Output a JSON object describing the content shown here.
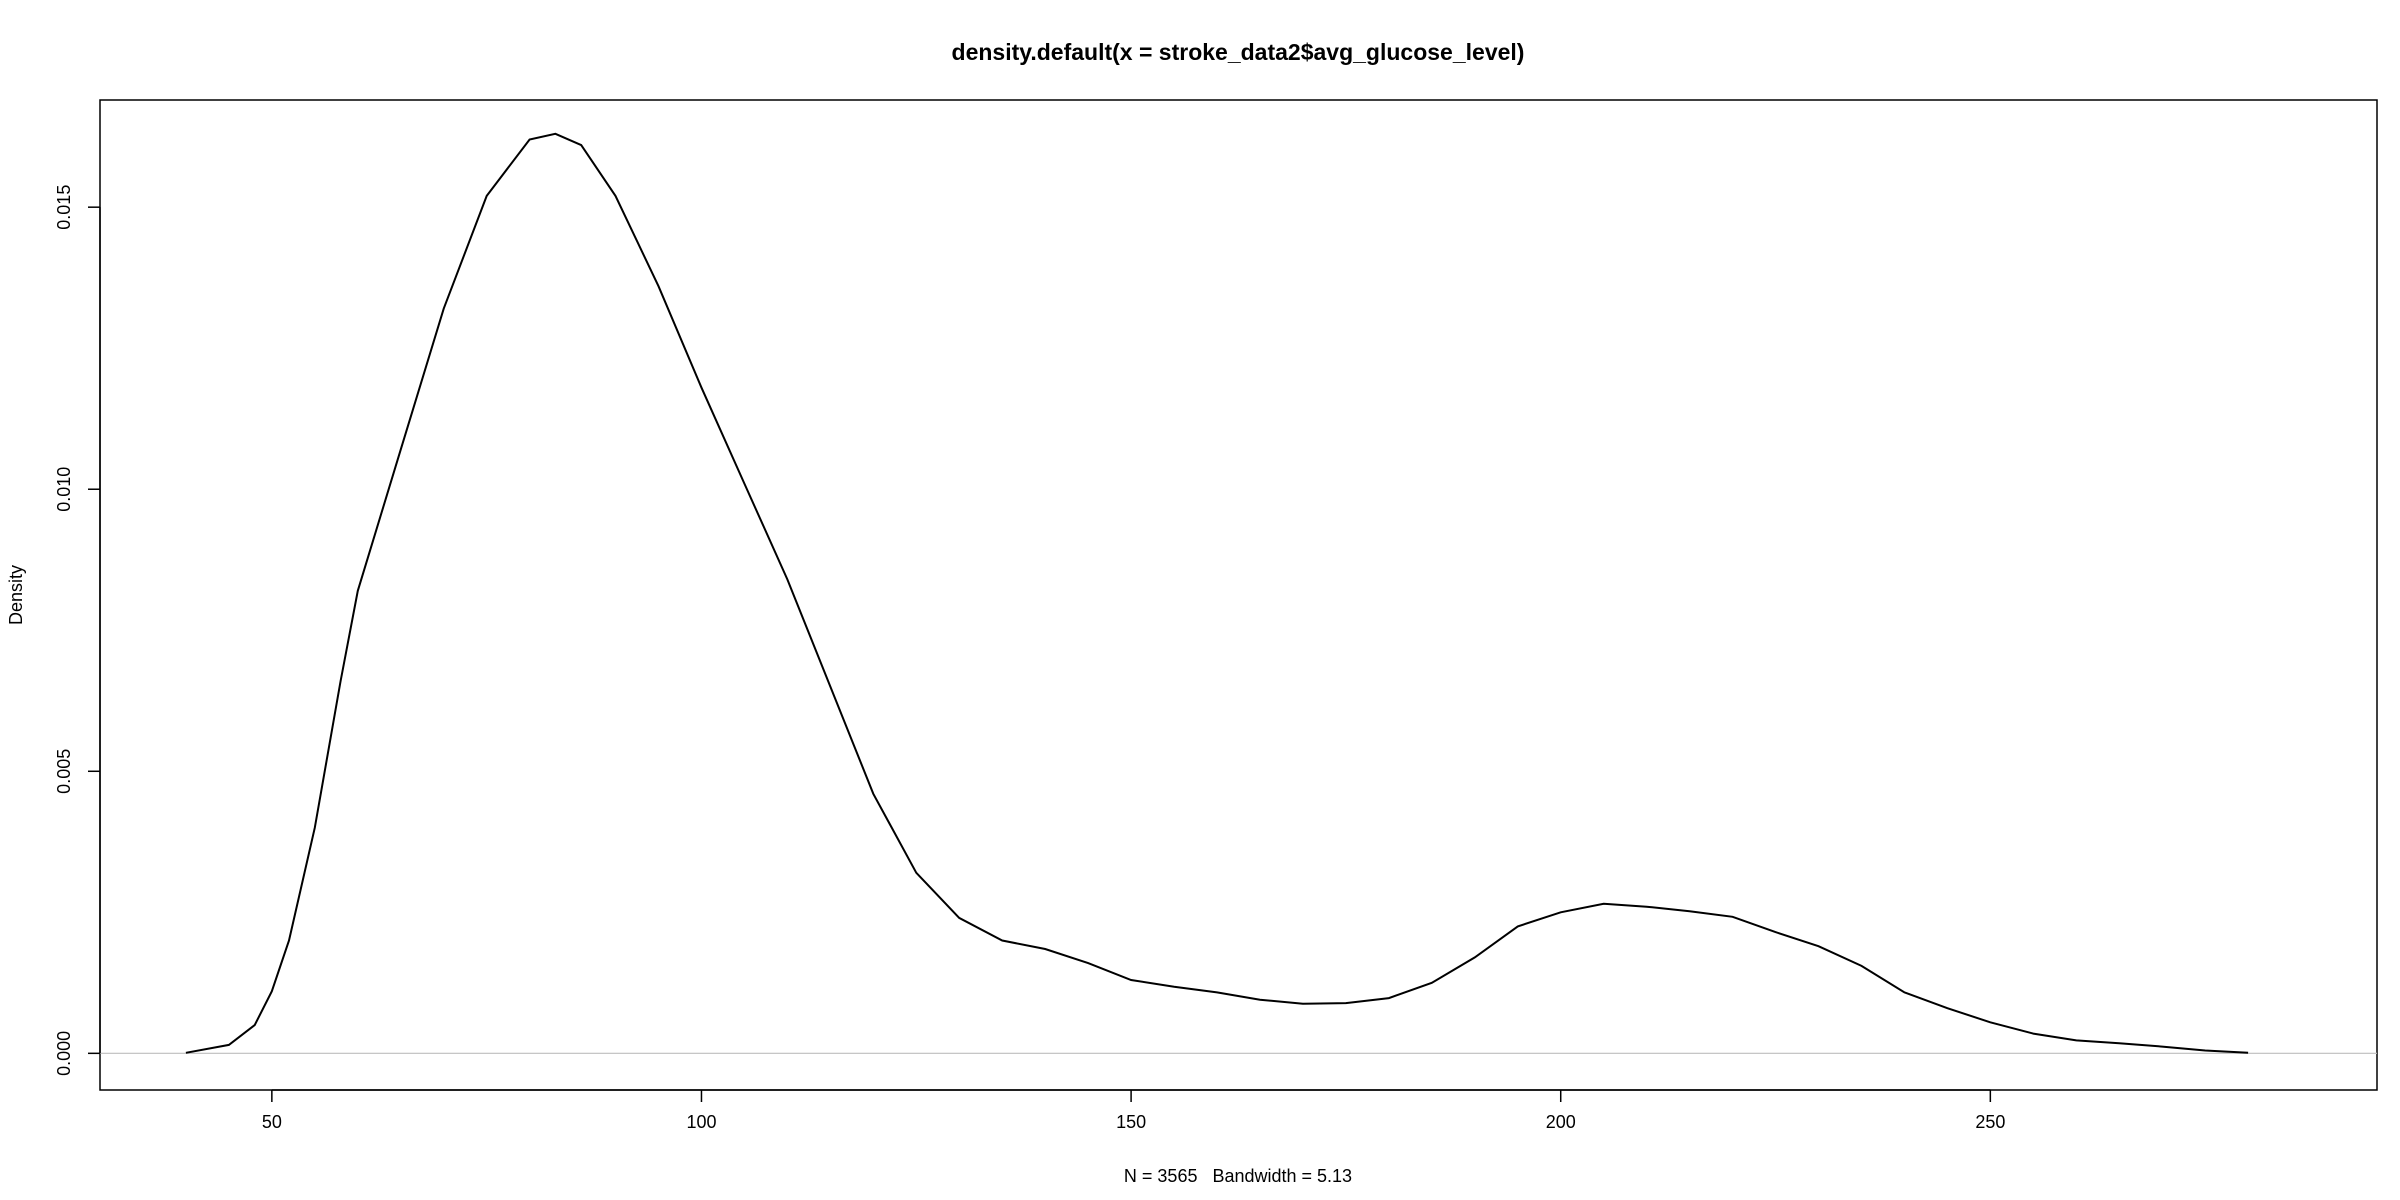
{
  "chart_data": {
    "type": "line",
    "title": "density.default(x = stroke_data2$avg_glucose_level)",
    "xlabel": "N = 3565   Bandwidth = 5.13",
    "ylabel": "Density",
    "xlim": [
      30,
      295
    ],
    "ylim": [
      -0.00065,
      0.0169
    ],
    "x_ticks": [
      50,
      100,
      150,
      200,
      250
    ],
    "x_tick_labels": [
      "50",
      "100",
      "150",
      "200",
      "250"
    ],
    "y_ticks": [
      0.0,
      0.005,
      0.01,
      0.015
    ],
    "y_tick_labels": [
      "0.000",
      "0.005",
      "0.010",
      "0.015"
    ],
    "baseline": 0,
    "grid": false,
    "line_color": "#000000",
    "baseline_color": "#bebebe",
    "series": [
      {
        "x": [
          40,
          45,
          48,
          50,
          52,
          55,
          58,
          60,
          65,
          70,
          75,
          80,
          83,
          86,
          90,
          95,
          100,
          105,
          110,
          115,
          120,
          125,
          130,
          135,
          140,
          145,
          150,
          155,
          160,
          165,
          170,
          175,
          180,
          185,
          190,
          195,
          200,
          205,
          210,
          215,
          220,
          225,
          230,
          235,
          240,
          245,
          250,
          255,
          260,
          265,
          270,
          275,
          280
        ],
        "y": [
          1e-05,
          0.00015,
          0.0005,
          0.0011,
          0.002,
          0.004,
          0.0066,
          0.0082,
          0.0107,
          0.0132,
          0.0152,
          0.0162,
          0.0163,
          0.0161,
          0.0152,
          0.0136,
          0.0118,
          0.0101,
          0.0084,
          0.0065,
          0.0046,
          0.0032,
          0.0024,
          0.002,
          0.00185,
          0.0016,
          0.0013,
          0.00118,
          0.00108,
          0.00095,
          0.00088,
          0.00089,
          0.00098,
          0.00125,
          0.0017,
          0.00225,
          0.0025,
          0.00265,
          0.0026,
          0.00252,
          0.00242,
          0.00215,
          0.0019,
          0.00155,
          0.00108,
          0.0008,
          0.00055,
          0.00035,
          0.00023,
          0.00018,
          0.00012,
          5e-05,
          1e-05
        ]
      }
    ]
  }
}
